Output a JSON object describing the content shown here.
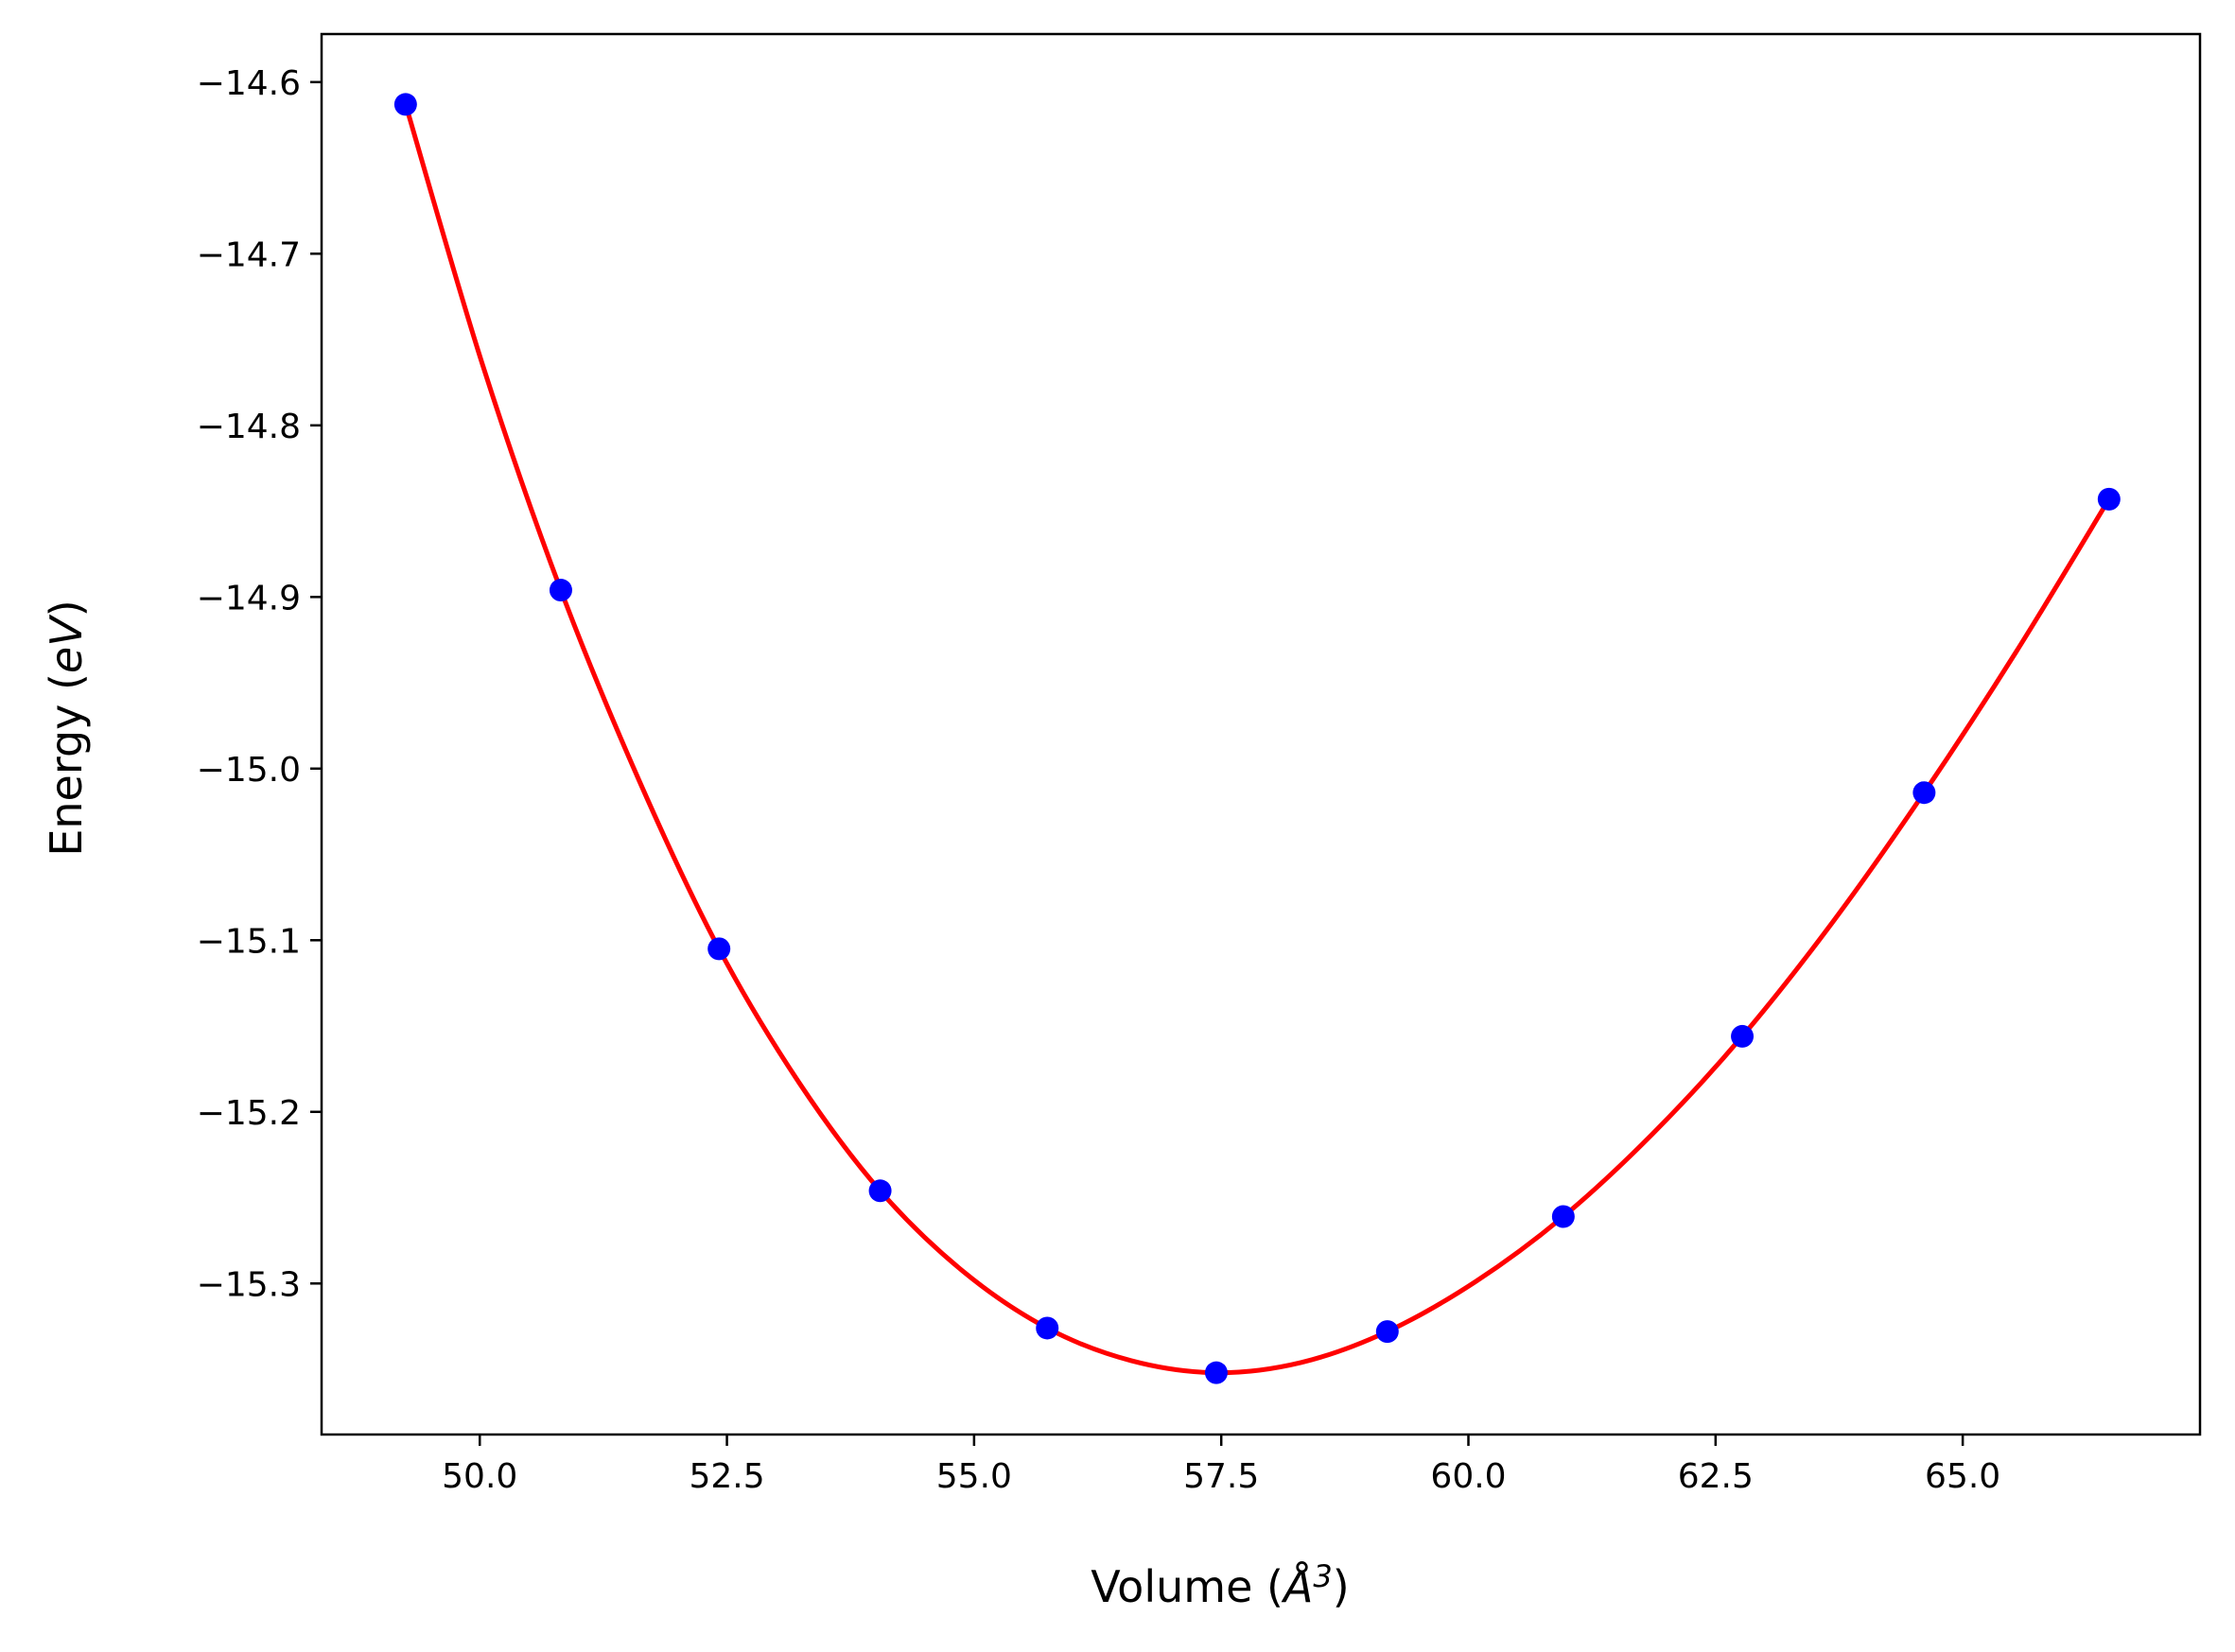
{
  "chart_data": {
    "type": "scatter",
    "xlabel_parts": {
      "prefix": "Volume (",
      "symbol": "Å",
      "exponent": "3",
      "suffix": ")"
    },
    "ylabel_parts": {
      "prefix": "Energy (",
      "symbol": "eV",
      "suffix": ")"
    },
    "xlim": [
      48.4,
      67.4
    ],
    "ylim": [
      -15.388,
      -14.572
    ],
    "x_ticks": [
      50.0,
      52.5,
      55.0,
      57.5,
      60.0,
      62.5,
      65.0
    ],
    "x_tick_labels": [
      "50.0",
      "52.5",
      "55.0",
      "57.5",
      "60.0",
      "62.5",
      "65.0"
    ],
    "y_ticks": [
      -14.6,
      -14.7,
      -14.8,
      -14.9,
      -15.0,
      -15.1,
      -15.2,
      -15.3
    ],
    "y_tick_labels": [
      "−14.6",
      "−14.7",
      "−14.8",
      "−14.9",
      "−15.0",
      "−15.1",
      "−15.2",
      "−15.3"
    ],
    "grid": false,
    "series": [
      {
        "kind": "points",
        "color": "#0000ff",
        "x": [
          49.25,
          50.82,
          52.42,
          54.05,
          55.74,
          57.45,
          59.18,
          60.96,
          62.77,
          64.61,
          66.48
        ],
        "y": [
          -14.613,
          -14.896,
          -15.105,
          -15.246,
          -15.326,
          -15.352,
          -15.328,
          -15.261,
          -15.156,
          -15.014,
          -14.843
        ]
      },
      {
        "kind": "fit-curve",
        "color": "#ff0000",
        "x": [
          49.25,
          50.03,
          50.82,
          51.62,
          52.42,
          53.23,
          54.05,
          54.89,
          55.74,
          56.59,
          57.45,
          58.31,
          59.18,
          60.07,
          60.96,
          61.86,
          62.77,
          63.69,
          64.61,
          65.54,
          66.48
        ],
        "y": [
          -14.613,
          -14.765,
          -14.896,
          -15.008,
          -15.105,
          -15.183,
          -15.246,
          -15.293,
          -15.326,
          -15.345,
          -15.352,
          -15.346,
          -15.328,
          -15.299,
          -15.261,
          -15.213,
          -15.156,
          -15.089,
          -15.014,
          -14.932,
          -14.843
        ]
      }
    ]
  }
}
